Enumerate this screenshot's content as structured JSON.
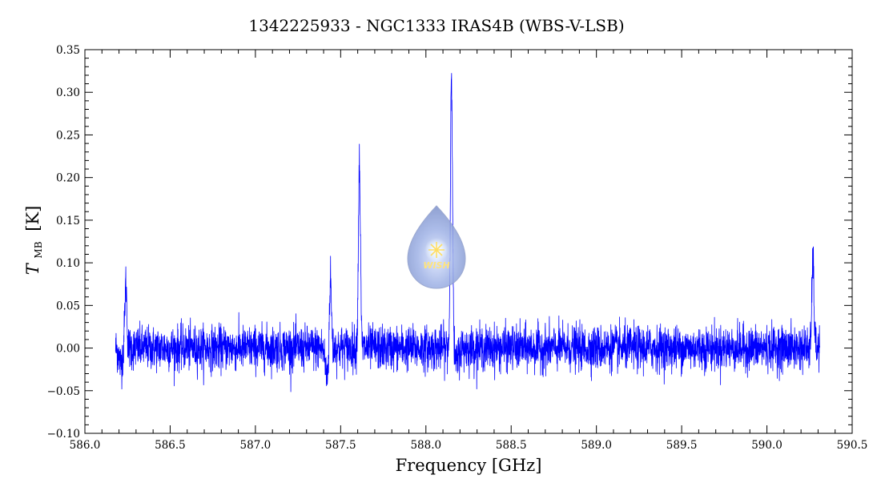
{
  "chart_data": {
    "type": "line",
    "title": "1342225933 - NGC1333 IRAS4B (WBS-V-LSB)",
    "xlabel": "Frequency [GHz]",
    "ylabel_symbol": "T",
    "ylabel_subscript": "MB",
    "ylabel_unit": "[K]",
    "xlim": [
      586.0,
      590.5
    ],
    "ylim": [
      -0.1,
      0.35
    ],
    "x_ticks": [
      "586.0",
      "586.5",
      "587.0",
      "587.5",
      "588.0",
      "588.5",
      "589.0",
      "589.5",
      "590.0",
      "590.5"
    ],
    "y_ticks": [
      "−0.10",
      "−0.05",
      "0.00",
      "0.05",
      "0.10",
      "0.15",
      "0.20",
      "0.25",
      "0.30",
      "0.35"
    ],
    "x_tick_values": [
      586.0,
      586.5,
      587.0,
      587.5,
      588.0,
      588.5,
      589.0,
      589.5,
      590.0,
      590.5
    ],
    "y_tick_values": [
      -0.1,
      -0.05,
      0.0,
      0.05,
      0.1,
      0.15,
      0.2,
      0.25,
      0.3,
      0.35
    ],
    "grid": false,
    "line_color": "#0000ff",
    "series": [
      {
        "x_range": [
          586.18,
          590.31
        ],
        "noise_rms_K": 0.015,
        "baseline_K": 0.0,
        "peaks": [
          {
            "x": 586.24,
            "y": 0.076
          },
          {
            "x": 587.44,
            "y": 0.085
          },
          {
            "x": 587.61,
            "y": 0.216
          },
          {
            "x": 588.15,
            "y": 0.33
          },
          {
            "x": 590.27,
            "y": 0.105
          }
        ],
        "absorption_dips": [
          {
            "x": 586.21,
            "y": -0.03
          },
          {
            "x": 587.42,
            "y": -0.055
          },
          {
            "x": 588.18,
            "y": -0.03
          }
        ]
      }
    ]
  },
  "logo": {
    "name": "wish-logo",
    "text": "WISH"
  }
}
